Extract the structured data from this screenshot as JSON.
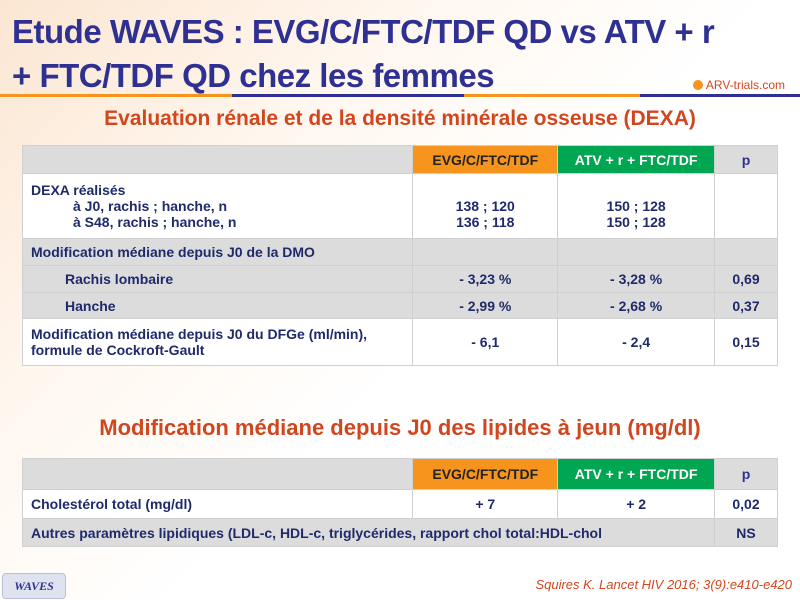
{
  "title_line1": "Etude WAVES : EVG/C/FTC/TDF QD vs ATV + r",
  "title_line2": "+ FTC/TDF QD chez les femmes",
  "logo": "ARV-trials.com",
  "section1": {
    "heading": "Evaluation rénale et de la densité minérale osseuse (DEXA)",
    "columns": [
      "EVG/C/FTC/TDF",
      "ATV + r + FTC/TDF",
      "p"
    ],
    "dexa": {
      "label": "DEXA réalisés",
      "j0_label": "à J0, rachis ; hanche, n",
      "s48_label": "à S48, rachis ; hanche, n",
      "evg_j0": "138 ; 120",
      "evg_s48": "136 ; 118",
      "atv_j0": "150 ; 128",
      "atv_s48": "150 ; 128"
    },
    "dmo_label": "Modification médiane depuis J0 de la DMO",
    "rows": [
      {
        "label": "Rachis lombaire",
        "evg": "- 3,23 %",
        "atv": "- 3,28 %",
        "p": "0,69"
      },
      {
        "label": "Hanche",
        "evg": "- 2,99 %",
        "atv": "- 2,68 %",
        "p": "0,37"
      }
    ],
    "dfge": {
      "label1": "Modification médiane depuis J0 du DFGe (ml/min),",
      "label2": "formule de Cockroft-Gault",
      "evg": "- 6,1",
      "atv": "- 2,4",
      "p": "0,15"
    }
  },
  "section2": {
    "heading": "Modification médiane depuis J0 des lipides à jeun (mg/dl)",
    "columns": [
      "EVG/C/FTC/TDF",
      "ATV + r + FTC/TDF",
      "p"
    ],
    "chol": {
      "label": "Cholestérol total (mg/dl)",
      "evg": "+ 7",
      "atv": "+ 2",
      "p": "0,02"
    },
    "other": {
      "label": "Autres paramètres lipidiques (LDL-c, HDL-c, triglycérides, rapport chol total:HDL-chol",
      "p": "NS"
    }
  },
  "footer": {
    "badge": "WAVES",
    "reference": "Squires K. Lancet HIV 2016; 3(9):e410-e420"
  },
  "colors": {
    "title": "#2e3192",
    "evg": "#f7941d",
    "atv": "#00a651",
    "heading": "#d2461e"
  }
}
